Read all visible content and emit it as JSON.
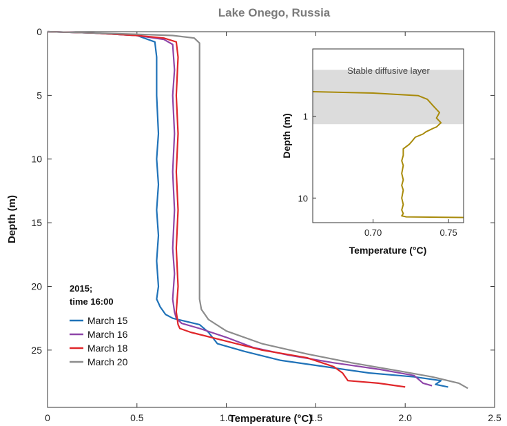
{
  "chart_data": [
    {
      "type": "line",
      "title": "Lake Onego, Russia",
      "xlabel": "Temperature (°C)",
      "ylabel": "Depth (m)",
      "xlim": [
        0,
        2.5
      ],
      "ylim": [
        29.5,
        0
      ],
      "xticks": [
        0,
        0.5,
        1.0,
        1.5,
        2.0,
        2.5
      ],
      "xtick_labels": [
        "0",
        "0.5",
        "1.0",
        "1.5",
        "2.0",
        "2.5"
      ],
      "yticks": [
        0,
        5,
        10,
        15,
        20,
        25
      ],
      "ytick_labels": [
        "0",
        "5",
        "10",
        "15",
        "20",
        "25"
      ],
      "grid": false,
      "legend": {
        "placement": "bottom-left",
        "title_lines": [
          "2015;",
          "time 16:00"
        ]
      },
      "series": [
        {
          "name": "March 15",
          "color": "#1f72b8",
          "x": [
            0.0,
            0.25,
            0.5,
            0.6,
            0.61,
            0.61,
            0.62,
            0.61,
            0.62,
            0.61,
            0.62,
            0.61,
            0.62,
            0.61,
            0.62,
            0.63,
            0.66,
            0.7,
            0.85,
            0.9,
            0.95,
            1.1,
            1.3,
            1.55,
            1.8,
            2.05,
            2.2,
            2.17,
            2.24
          ],
          "y": [
            0.0,
            0.1,
            0.3,
            0.8,
            2.0,
            5.0,
            8.0,
            10.0,
            12.0,
            14.0,
            16.0,
            18.0,
            20.0,
            21.0,
            21.3,
            21.6,
            22.2,
            22.5,
            23.0,
            23.6,
            24.5,
            25.1,
            25.8,
            26.3,
            26.8,
            27.1,
            27.4,
            27.7,
            27.9
          ]
        },
        {
          "name": "March 16",
          "color": "#8e45a8",
          "x": [
            0.0,
            0.25,
            0.5,
            0.65,
            0.7,
            0.71,
            0.7,
            0.71,
            0.7,
            0.71,
            0.7,
            0.71,
            0.7,
            0.71,
            0.72,
            0.75,
            0.85,
            1.0,
            1.15,
            1.35,
            1.6,
            1.85,
            2.05,
            2.1,
            2.15
          ],
          "y": [
            0.0,
            0.1,
            0.3,
            0.6,
            1.0,
            3.0,
            5.0,
            8.0,
            11.0,
            14.0,
            17.0,
            19.0,
            21.0,
            22.0,
            22.5,
            22.9,
            23.3,
            24.0,
            24.8,
            25.4,
            26.0,
            26.5,
            27.0,
            27.6,
            27.8
          ]
        },
        {
          "name": "March 18",
          "color": "#e0262a",
          "x": [
            0.0,
            0.25,
            0.5,
            0.65,
            0.72,
            0.73,
            0.72,
            0.73,
            0.72,
            0.73,
            0.72,
            0.73,
            0.72,
            0.73,
            0.74,
            0.8,
            1.0,
            1.2,
            1.45,
            1.6,
            1.65,
            1.68,
            1.85,
            2.0
          ],
          "y": [
            0.0,
            0.1,
            0.3,
            0.5,
            0.8,
            2.0,
            5.0,
            8.0,
            11.0,
            14.0,
            17.0,
            20.0,
            22.0,
            23.0,
            23.3,
            23.6,
            24.3,
            25.0,
            25.6,
            26.3,
            26.8,
            27.4,
            27.6,
            27.9
          ]
        },
        {
          "name": "March 20",
          "color": "#8c8c8c",
          "x": [
            0.0,
            0.25,
            0.5,
            0.7,
            0.82,
            0.85,
            0.85,
            0.85,
            0.85,
            0.85,
            0.85,
            0.86,
            0.9,
            1.0,
            1.2,
            1.45,
            1.7,
            1.95,
            2.15,
            2.3,
            2.35
          ],
          "y": [
            0.0,
            0.1,
            0.2,
            0.3,
            0.5,
            0.9,
            3.0,
            8.0,
            13.0,
            18.0,
            21.0,
            21.8,
            22.6,
            23.5,
            24.5,
            25.3,
            26.0,
            26.6,
            27.1,
            27.6,
            28.0
          ]
        }
      ]
    },
    {
      "type": "line",
      "title": "",
      "xlabel": "Temperature (°C)",
      "ylabel": "Depth (m)",
      "xlim": [
        0.66,
        0.76
      ],
      "ylim": [
        0.15,
        20
      ],
      "yscale": "log",
      "xticks": [
        0.7,
        0.75
      ],
      "xtick_labels": [
        "0.70",
        "0.75"
      ],
      "yticks": [
        1,
        10
      ],
      "ytick_labels": [
        "1",
        "10"
      ],
      "grid": false,
      "annotation": {
        "text": "Stable diffusive layer",
        "depth_range": [
          0.27,
          1.25
        ],
        "color": "#dcdcdc"
      },
      "series": [
        {
          "name": "March 20",
          "color": "#a88a0a",
          "x": [
            0.66,
            0.7,
            0.73,
            0.736,
            0.74,
            0.744,
            0.742,
            0.745,
            0.742,
            0.74,
            0.735,
            0.733,
            0.728,
            0.726,
            0.724,
            0.72,
            0.72,
            0.719,
            0.72,
            0.719,
            0.72,
            0.719,
            0.72,
            0.719,
            0.72,
            0.719,
            0.72,
            0.719,
            0.722,
            0.76
          ],
          "y": [
            0.5,
            0.52,
            0.56,
            0.62,
            0.75,
            0.9,
            1.05,
            1.2,
            1.35,
            1.4,
            1.55,
            1.65,
            1.8,
            2.0,
            2.2,
            2.5,
            3.0,
            3.5,
            4.0,
            5.0,
            6.0,
            7.0,
            8.0,
            10.0,
            12.0,
            14.0,
            15.5,
            16.5,
            17.0,
            17.3
          ]
        }
      ]
    }
  ]
}
